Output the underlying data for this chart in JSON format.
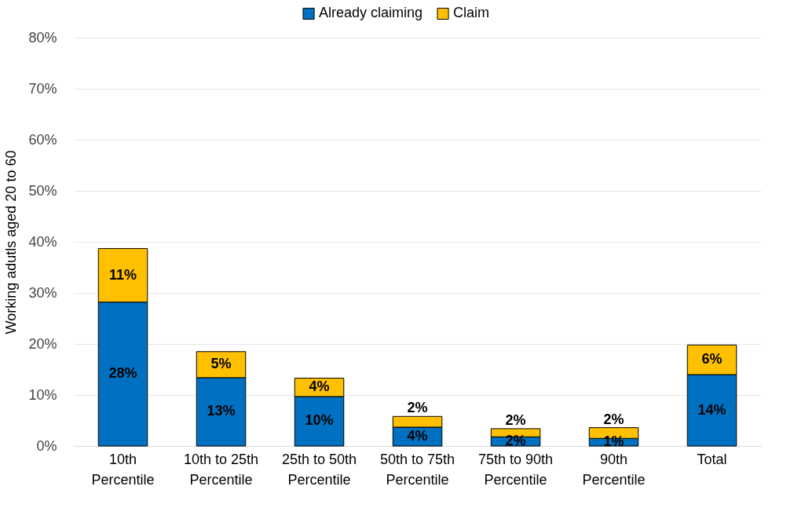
{
  "chart_data": {
    "type": "bar",
    "stacked": true,
    "ylabel": "Working adutls aged 20 to 60",
    "categories": [
      "10th Percentile",
      "10th to 25th Percentile",
      "25th to 50th Percentile",
      "50th to 75th Percentile",
      "75th to 90th Percentile",
      "90th Percentile",
      "Total"
    ],
    "series": [
      {
        "name": "Already claiming",
        "color": "#0070c0",
        "values": [
          28.2,
          13.4,
          9.7,
          3.7,
          1.8,
          1.5,
          14.0
        ],
        "value_labels": [
          "28%",
          "13%",
          "10%",
          "4%",
          "2%",
          "1%",
          "14%"
        ]
      },
      {
        "name": "Claim",
        "color": "#ffc000",
        "values": [
          10.5,
          5.1,
          3.6,
          2.1,
          1.6,
          2.1,
          5.8
        ],
        "value_labels": [
          "11%",
          "5%",
          "4%",
          "2%",
          "2%",
          "2%",
          "6%"
        ]
      }
    ],
    "ylim": [
      0,
      80
    ],
    "yticks": [
      {
        "value": 0,
        "label": "0%"
      },
      {
        "value": 10,
        "label": "10%"
      },
      {
        "value": 20,
        "label": "20%"
      },
      {
        "value": 30,
        "label": "30%"
      },
      {
        "value": 40,
        "label": "40%"
      },
      {
        "value": 50,
        "label": "50%"
      },
      {
        "value": 60,
        "label": "60%"
      },
      {
        "value": 70,
        "label": "70%"
      },
      {
        "value": 80,
        "label": "80%"
      }
    ],
    "grid": "y",
    "legend": "top"
  }
}
